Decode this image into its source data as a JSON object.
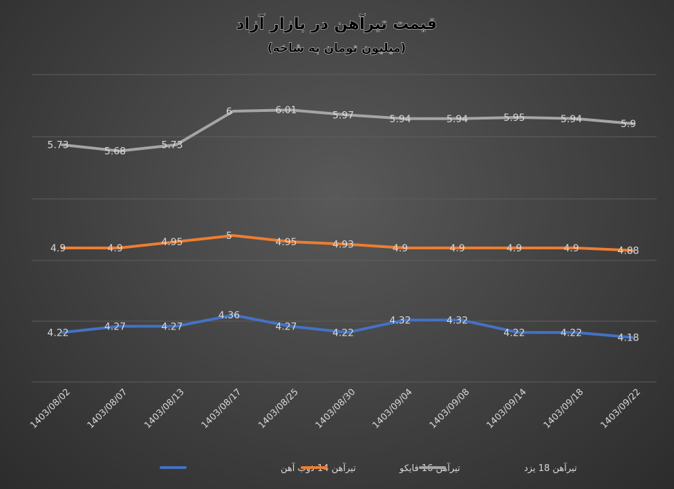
{
  "chart_data": {
    "type": "line",
    "title": "قیمت تیرآهن در بازار آزاد",
    "subtitle": "(میلیون تومان به شاخه)",
    "categories": [
      "1403/08/02",
      "1403/08/07",
      "1403/08/13",
      "1403/08/17",
      "1403/08/25",
      "1403/08/30",
      "1403/09/04",
      "1403/09/08",
      "1403/09/14",
      "1403/09/18",
      "1403/09/22"
    ],
    "series": [
      {
        "name": "تیرآهن 14 ذوب آهن",
        "color": "#4472c4",
        "values": [
          4.22,
          4.27,
          4.27,
          4.36,
          4.27,
          4.22,
          4.32,
          4.32,
          4.22,
          4.22,
          4.18
        ],
        "labels": [
          "4.22",
          "4.27",
          "4.27",
          "4.36",
          "4.27",
          "4.22",
          "4.32",
          "4.32",
          "4.22",
          "4.22",
          "4.18"
        ]
      },
      {
        "name": "تیرآهن 16 فایکو",
        "color": "#ed7d31",
        "values": [
          4.9,
          4.9,
          4.95,
          5,
          4.95,
          4.93,
          4.9,
          4.9,
          4.9,
          4.9,
          4.88
        ],
        "labels": [
          "4.9",
          "4.9",
          "4.95",
          "5",
          "4.95",
          "4.93",
          "4.9",
          "4.9",
          "4.9",
          "4.9",
          "4.88"
        ]
      },
      {
        "name": "تیرآهن 18 یزد",
        "color": "#a5a5a5",
        "values": [
          5.73,
          5.68,
          5.73,
          6,
          6.01,
          5.97,
          5.94,
          5.94,
          5.95,
          5.94,
          5.9
        ],
        "labels": [
          "5.73",
          "5.68",
          "5.73",
          "6",
          "6.01",
          "5.97",
          "5.94",
          "5.94",
          "5.95",
          "5.94",
          "5.9"
        ]
      }
    ],
    "grid": true,
    "legend": "bottom",
    "y_axis_labels_shown": false
  }
}
